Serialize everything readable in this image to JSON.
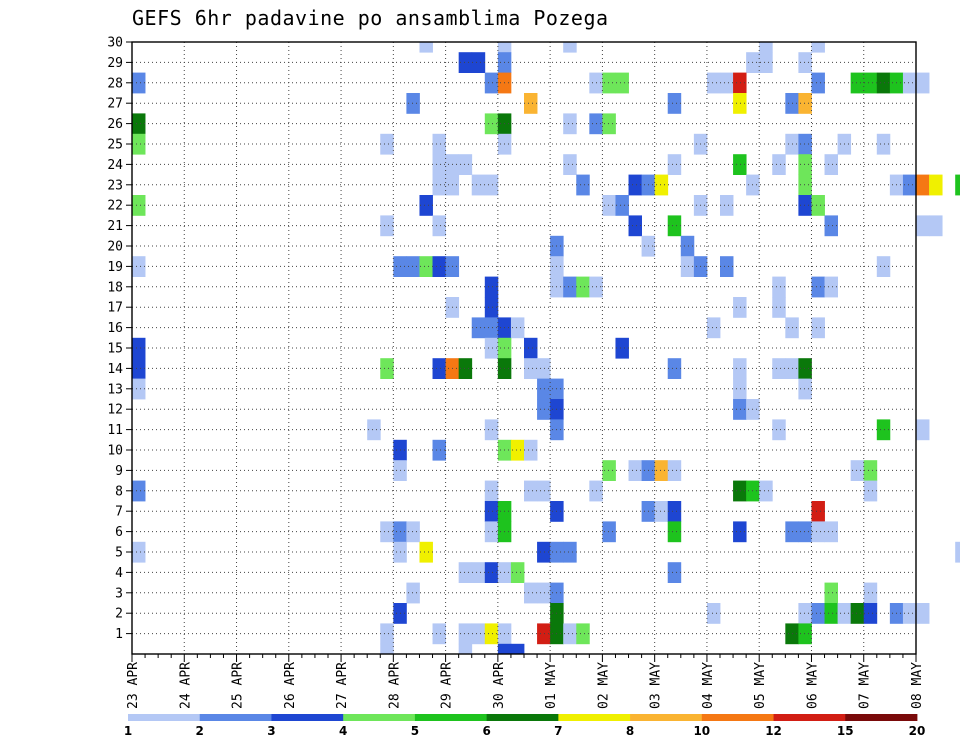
{
  "chart_data": {
    "type": "heatmap",
    "title": "GEFS 6hr padavine po ansamblima Pozega",
    "x_tick_labels": [
      "23 APR",
      "24 APR",
      "25 APR",
      "26 APR",
      "27 APR",
      "28 APR",
      "29 APR",
      "30 APR",
      "01 MAY",
      "02 MAY",
      "03 MAY",
      "04 MAY",
      "05 MAY",
      "06 MAY",
      "07 MAY",
      "08 MAY"
    ],
    "y_range": [
      1,
      30
    ],
    "y_tick_labels": [
      "1",
      "2",
      "3",
      "4",
      "5",
      "6",
      "7",
      "8",
      "9",
      "10",
      "11",
      "12",
      "13",
      "14",
      "15",
      "16",
      "17",
      "18",
      "19",
      "20",
      "21",
      "22",
      "23",
      "24",
      "25",
      "26",
      "27",
      "28",
      "29",
      "30"
    ],
    "steps_per_day": 4,
    "grid": true,
    "color_scale": {
      "labels": [
        "1",
        "2",
        "3",
        "4",
        "5",
        "6",
        "7",
        "8",
        "10",
        "12",
        "15",
        "20"
      ],
      "colors": [
        "#b4c8f5",
        "#5a87e6",
        "#1e46d2",
        "#6ee65a",
        "#1ec31e",
        "#0a780a",
        "#f0f000",
        "#fab432",
        "#f57814",
        "#d21e14",
        "#7a0a0a"
      ]
    },
    "cells": [
      [
        30,
        22,
        1
      ],
      [
        30,
        28,
        1
      ],
      [
        30,
        33,
        1
      ],
      [
        30,
        48,
        1
      ],
      [
        30,
        52,
        1
      ],
      [
        29,
        25,
        3
      ],
      [
        29,
        26,
        3
      ],
      [
        29,
        28,
        2
      ],
      [
        29,
        47,
        1
      ],
      [
        29,
        48,
        1
      ],
      [
        29,
        51,
        1
      ],
      [
        29,
        65,
        2
      ],
      [
        29,
        66,
        1
      ],
      [
        29,
        67,
        1
      ],
      [
        29,
        69,
        5
      ],
      [
        29,
        70,
        6
      ],
      [
        28,
        0,
        2
      ],
      [
        28,
        27,
        2
      ],
      [
        28,
        28,
        9
      ],
      [
        28,
        35,
        1
      ],
      [
        28,
        36,
        4
      ],
      [
        28,
        37,
        4
      ],
      [
        28,
        44,
        1
      ],
      [
        28,
        45,
        1
      ],
      [
        28,
        46,
        10
      ],
      [
        28,
        52,
        2
      ],
      [
        28,
        55,
        5
      ],
      [
        28,
        56,
        5
      ],
      [
        28,
        57,
        6
      ],
      [
        28,
        58,
        5
      ],
      [
        28,
        59,
        1
      ],
      [
        28,
        60,
        1
      ],
      [
        27,
        21,
        2
      ],
      [
        27,
        30,
        8
      ],
      [
        27,
        41,
        2
      ],
      [
        27,
        46,
        7
      ],
      [
        27,
        50,
        2
      ],
      [
        27,
        51,
        8
      ],
      [
        26,
        0,
        6
      ],
      [
        26,
        27,
        4
      ],
      [
        26,
        28,
        6
      ],
      [
        26,
        33,
        1
      ],
      [
        26,
        35,
        2
      ],
      [
        26,
        36,
        4
      ],
      [
        26,
        69,
        1
      ],
      [
        25,
        0,
        4
      ],
      [
        25,
        19,
        1
      ],
      [
        25,
        23,
        1
      ],
      [
        25,
        28,
        1
      ],
      [
        25,
        43,
        1
      ],
      [
        25,
        50,
        1
      ],
      [
        25,
        51,
        2
      ],
      [
        25,
        54,
        1
      ],
      [
        25,
        57,
        1
      ],
      [
        25,
        68,
        1
      ],
      [
        25,
        69,
        1
      ],
      [
        24,
        23,
        1
      ],
      [
        24,
        24,
        1
      ],
      [
        24,
        25,
        1
      ],
      [
        24,
        33,
        1
      ],
      [
        24,
        41,
        1
      ],
      [
        24,
        46,
        5
      ],
      [
        24,
        49,
        1
      ],
      [
        24,
        51,
        4
      ],
      [
        24,
        53,
        1
      ],
      [
        24,
        66,
        1
      ],
      [
        24,
        68,
        1
      ],
      [
        24,
        69,
        2
      ],
      [
        23,
        23,
        1
      ],
      [
        23,
        24,
        1
      ],
      [
        23,
        26,
        1
      ],
      [
        23,
        27,
        1
      ],
      [
        23,
        34,
        2
      ],
      [
        23,
        38,
        3
      ],
      [
        23,
        39,
        2
      ],
      [
        23,
        40,
        7
      ],
      [
        23,
        47,
        1
      ],
      [
        23,
        51,
        4
      ],
      [
        23,
        58,
        1
      ],
      [
        23,
        59,
        2
      ],
      [
        23,
        60,
        9
      ],
      [
        23,
        61,
        7
      ],
      [
        23,
        63,
        5
      ],
      [
        23,
        64,
        4
      ],
      [
        23,
        65,
        1
      ],
      [
        23,
        66,
        2
      ],
      [
        23,
        67,
        1
      ],
      [
        23,
        69,
        2
      ],
      [
        22,
        0,
        4
      ],
      [
        22,
        22,
        3
      ],
      [
        22,
        36,
        1
      ],
      [
        22,
        37,
        2
      ],
      [
        22,
        43,
        1
      ],
      [
        22,
        45,
        1
      ],
      [
        22,
        51,
        3
      ],
      [
        22,
        52,
        4
      ],
      [
        22,
        70,
        1
      ],
      [
        21,
        19,
        1
      ],
      [
        21,
        23,
        1
      ],
      [
        21,
        38,
        3
      ],
      [
        21,
        41,
        5
      ],
      [
        21,
        53,
        2
      ],
      [
        21,
        60,
        1
      ],
      [
        21,
        61,
        1
      ],
      [
        21,
        70,
        1
      ],
      [
        20,
        32,
        2
      ],
      [
        20,
        39,
        1
      ],
      [
        20,
        42,
        2
      ],
      [
        19,
        0,
        1
      ],
      [
        19,
        20,
        2
      ],
      [
        19,
        21,
        2
      ],
      [
        19,
        22,
        4
      ],
      [
        19,
        23,
        3
      ],
      [
        19,
        24,
        2
      ],
      [
        19,
        32,
        1
      ],
      [
        19,
        42,
        1
      ],
      [
        19,
        43,
        2
      ],
      [
        19,
        45,
        2
      ],
      [
        19,
        57,
        1
      ],
      [
        18,
        27,
        3
      ],
      [
        18,
        32,
        1
      ],
      [
        18,
        33,
        2
      ],
      [
        18,
        34,
        4
      ],
      [
        18,
        35,
        1
      ],
      [
        18,
        49,
        1
      ],
      [
        18,
        52,
        2
      ],
      [
        18,
        53,
        1
      ],
      [
        18,
        67,
        1
      ],
      [
        17,
        24,
        1
      ],
      [
        17,
        27,
        3
      ],
      [
        17,
        46,
        1
      ],
      [
        17,
        49,
        1
      ],
      [
        17,
        66,
        1
      ],
      [
        17,
        69,
        4
      ],
      [
        16,
        26,
        2
      ],
      [
        16,
        27,
        2
      ],
      [
        16,
        28,
        3
      ],
      [
        16,
        29,
        1
      ],
      [
        16,
        44,
        1
      ],
      [
        16,
        50,
        1
      ],
      [
        16,
        52,
        1
      ],
      [
        15,
        0,
        3
      ],
      [
        15,
        27,
        1
      ],
      [
        15,
        28,
        4
      ],
      [
        15,
        30,
        3
      ],
      [
        15,
        37,
        3
      ],
      [
        14,
        0,
        3
      ],
      [
        14,
        19,
        4
      ],
      [
        14,
        23,
        3
      ],
      [
        14,
        24,
        9
      ],
      [
        14,
        25,
        6
      ],
      [
        14,
        28,
        6
      ],
      [
        14,
        30,
        1
      ],
      [
        14,
        31,
        1
      ],
      [
        14,
        41,
        2
      ],
      [
        14,
        46,
        1
      ],
      [
        14,
        49,
        1
      ],
      [
        14,
        50,
        1
      ],
      [
        14,
        51,
        6
      ],
      [
        14,
        68,
        3
      ],
      [
        14,
        69,
        1
      ],
      [
        13,
        0,
        1
      ],
      [
        13,
        31,
        2
      ],
      [
        13,
        32,
        2
      ],
      [
        13,
        46,
        1
      ],
      [
        13,
        51,
        1
      ],
      [
        13,
        64,
        3
      ],
      [
        13,
        65,
        2
      ],
      [
        12,
        31,
        2
      ],
      [
        12,
        32,
        3
      ],
      [
        12,
        46,
        2
      ],
      [
        12,
        47,
        1
      ],
      [
        11,
        18,
        1
      ],
      [
        11,
        27,
        1
      ],
      [
        11,
        32,
        2
      ],
      [
        11,
        49,
        1
      ],
      [
        11,
        57,
        5
      ],
      [
        11,
        60,
        1
      ],
      [
        11,
        66,
        1
      ],
      [
        11,
        67,
        5
      ],
      [
        11,
        68,
        5
      ],
      [
        11,
        69,
        2
      ],
      [
        10,
        20,
        3
      ],
      [
        10,
        23,
        2
      ],
      [
        10,
        28,
        4
      ],
      [
        10,
        29,
        7
      ],
      [
        10,
        30,
        1
      ],
      [
        10,
        64,
        1
      ],
      [
        10,
        65,
        3
      ],
      [
        10,
        67,
        1
      ],
      [
        10,
        68,
        2
      ],
      [
        10,
        69,
        2
      ],
      [
        10,
        70,
        4
      ],
      [
        9,
        20,
        1
      ],
      [
        9,
        36,
        4
      ],
      [
        9,
        38,
        1
      ],
      [
        9,
        39,
        2
      ],
      [
        9,
        40,
        8
      ],
      [
        9,
        41,
        1
      ],
      [
        9,
        55,
        1
      ],
      [
        9,
        56,
        4
      ],
      [
        8,
        0,
        2
      ],
      [
        8,
        27,
        1
      ],
      [
        8,
        30,
        1
      ],
      [
        8,
        31,
        1
      ],
      [
        8,
        35,
        1
      ],
      [
        8,
        46,
        6
      ],
      [
        8,
        47,
        5
      ],
      [
        8,
        48,
        1
      ],
      [
        8,
        56,
        1
      ],
      [
        8,
        65,
        7
      ],
      [
        8,
        66,
        8
      ],
      [
        8,
        67,
        8
      ],
      [
        8,
        68,
        4
      ],
      [
        8,
        70,
        1
      ],
      [
        7,
        27,
        3
      ],
      [
        7,
        28,
        5
      ],
      [
        7,
        32,
        3
      ],
      [
        7,
        39,
        2
      ],
      [
        7,
        40,
        1
      ],
      [
        7,
        41,
        3
      ],
      [
        7,
        52,
        10
      ],
      [
        6,
        19,
        1
      ],
      [
        6,
        20,
        2
      ],
      [
        6,
        21,
        1
      ],
      [
        6,
        27,
        1
      ],
      [
        6,
        28,
        5
      ],
      [
        6,
        36,
        2
      ],
      [
        6,
        41,
        5
      ],
      [
        6,
        46,
        3
      ],
      [
        6,
        50,
        2
      ],
      [
        6,
        51,
        2
      ],
      [
        6,
        52,
        1
      ],
      [
        6,
        53,
        1
      ],
      [
        6,
        65,
        3
      ],
      [
        6,
        66,
        3
      ],
      [
        6,
        67,
        1
      ],
      [
        5,
        0,
        1
      ],
      [
        5,
        20,
        1
      ],
      [
        5,
        22,
        7
      ],
      [
        5,
        31,
        3
      ],
      [
        5,
        32,
        2
      ],
      [
        5,
        33,
        2
      ],
      [
        5,
        63,
        1
      ],
      [
        5,
        64,
        8
      ],
      [
        5,
        65,
        1
      ],
      [
        4,
        25,
        1
      ],
      [
        4,
        26,
        1
      ],
      [
        4,
        27,
        3
      ],
      [
        4,
        28,
        1
      ],
      [
        4,
        29,
        4
      ],
      [
        4,
        41,
        2
      ],
      [
        3,
        21,
        1
      ],
      [
        3,
        30,
        1
      ],
      [
        3,
        31,
        1
      ],
      [
        3,
        32,
        2
      ],
      [
        3,
        53,
        4
      ],
      [
        3,
        56,
        1
      ],
      [
        2,
        20,
        3
      ],
      [
        2,
        32,
        6
      ],
      [
        2,
        44,
        1
      ],
      [
        2,
        51,
        1
      ],
      [
        2,
        52,
        2
      ],
      [
        2,
        53,
        5
      ],
      [
        2,
        54,
        1
      ],
      [
        2,
        55,
        6
      ],
      [
        2,
        56,
        3
      ],
      [
        2,
        58,
        2
      ],
      [
        2,
        59,
        1
      ],
      [
        2,
        60,
        1
      ],
      [
        1,
        19,
        1
      ],
      [
        1,
        23,
        1
      ],
      [
        1,
        25,
        1
      ],
      [
        1,
        26,
        1
      ],
      [
        1,
        27,
        7
      ],
      [
        1,
        28,
        1
      ],
      [
        1,
        31,
        10
      ],
      [
        1,
        32,
        6
      ],
      [
        1,
        33,
        1
      ],
      [
        1,
        34,
        4
      ],
      [
        1,
        50,
        6
      ],
      [
        1,
        51,
        5
      ],
      [
        0,
        19,
        1
      ],
      [
        0,
        25,
        1
      ],
      [
        0,
        28,
        3
      ],
      [
        0,
        29,
        3
      ],
      [
        0,
        65,
        2
      ],
      [
        0,
        66,
        3
      ],
      [
        -1,
        0,
        3
      ],
      [
        -1,
        23,
        1
      ],
      [
        -1,
        28,
        6
      ],
      [
        -1,
        38,
        1
      ],
      [
        -1,
        46,
        1
      ],
      [
        -1,
        51,
        3
      ],
      [
        -1,
        52,
        3
      ],
      [
        -1,
        53,
        3
      ],
      [
        -1,
        55,
        1
      ],
      [
        -1,
        56,
        3
      ],
      [
        -1,
        57,
        1
      ]
    ]
  }
}
